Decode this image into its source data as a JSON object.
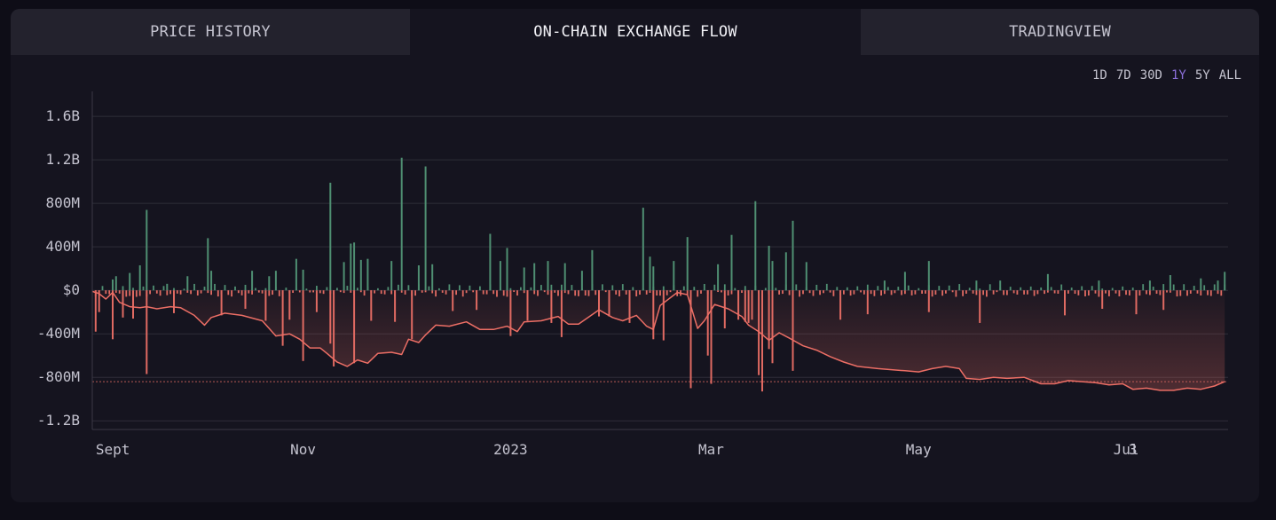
{
  "tabs": [
    {
      "label": "PRICE HISTORY",
      "active": false
    },
    {
      "label": "ON-CHAIN EXCHANGE FLOW",
      "active": true
    },
    {
      "label": "TRADINGVIEW",
      "active": false
    }
  ],
  "ranges": [
    {
      "label": "1D",
      "active": false
    },
    {
      "label": "7D",
      "active": false
    },
    {
      "label": "30D",
      "active": false
    },
    {
      "label": "1Y",
      "active": true
    },
    {
      "label": "5Y",
      "active": false
    },
    {
      "label": "ALL",
      "active": false
    }
  ],
  "colors": {
    "inflow_bar": "#4f8f72",
    "outflow_bar": "#e06a62",
    "cumulative_line": "#ec6e65",
    "active_range": "#8b6fd8",
    "grid": "#2e2d38"
  },
  "chart_data": {
    "type": "bar",
    "title": "",
    "xlabel": "",
    "ylabel": "",
    "ylim": [
      -1280000000,
      1830000000
    ],
    "y_ticks": [
      {
        "value": 1600000000,
        "label": "1.6B"
      },
      {
        "value": 1200000000,
        "label": "1.2B"
      },
      {
        "value": 800000000,
        "label": "800M"
      },
      {
        "value": 400000000,
        "label": "400M"
      },
      {
        "value": 0,
        "label": "$0"
      },
      {
        "value": -400000000,
        "label": "-400M"
      },
      {
        "value": -800000000,
        "label": "-800M"
      },
      {
        "value": -1200000000,
        "label": "-1.2B"
      }
    ],
    "x_range": [
      "2022-08-31",
      "2023-07-31"
    ],
    "x_ticks": [
      {
        "date": "2022-09-01",
        "label": "Sept"
      },
      {
        "date": "2022-11-01",
        "label": "Nov"
      },
      {
        "date": "2023-01-01",
        "label": "2023"
      },
      {
        "date": "2023-03-01",
        "label": "Mar"
      },
      {
        "date": "2023-05-01",
        "label": "May"
      },
      {
        "date": "2023-07-01",
        "label": "Jul"
      },
      {
        "date": "2023-07-03",
        "label": "3"
      }
    ],
    "grid": true,
    "legend": "none",
    "reference_line": -840000000,
    "inflow_bars": [
      [
        "2022-09-06",
        100000000
      ],
      [
        "2022-09-07",
        130000000
      ],
      [
        "2022-09-11",
        160000000
      ],
      [
        "2022-09-14",
        230000000
      ],
      [
        "2022-09-16",
        740000000
      ],
      [
        "2022-09-22",
        60000000
      ],
      [
        "2022-09-28",
        130000000
      ],
      [
        "2022-10-04",
        480000000
      ],
      [
        "2022-10-05",
        180000000
      ],
      [
        "2022-10-17",
        180000000
      ],
      [
        "2022-10-22",
        130000000
      ],
      [
        "2022-10-24",
        180000000
      ],
      [
        "2022-10-30",
        290000000
      ],
      [
        "2022-11-01",
        190000000
      ],
      [
        "2022-11-09",
        990000000
      ],
      [
        "2022-11-13",
        260000000
      ],
      [
        "2022-11-15",
        430000000
      ],
      [
        "2022-11-16",
        440000000
      ],
      [
        "2022-11-18",
        280000000
      ],
      [
        "2022-11-20",
        290000000
      ],
      [
        "2022-11-27",
        270000000
      ],
      [
        "2022-11-30",
        1220000000
      ],
      [
        "2022-12-05",
        230000000
      ],
      [
        "2022-12-07",
        1140000000
      ],
      [
        "2022-12-09",
        240000000
      ],
      [
        "2022-12-26",
        520000000
      ],
      [
        "2022-12-29",
        270000000
      ],
      [
        "2022-12-31",
        390000000
      ],
      [
        "2023-01-05",
        210000000
      ],
      [
        "2023-01-08",
        250000000
      ],
      [
        "2023-01-12",
        270000000
      ],
      [
        "2023-01-17",
        250000000
      ],
      [
        "2023-01-22",
        180000000
      ],
      [
        "2023-01-25",
        370000000
      ],
      [
        "2023-02-09",
        760000000
      ],
      [
        "2023-02-11",
        310000000
      ],
      [
        "2023-02-12",
        220000000
      ],
      [
        "2023-02-18",
        270000000
      ],
      [
        "2023-02-22",
        490000000
      ],
      [
        "2023-03-03",
        240000000
      ],
      [
        "2023-03-07",
        510000000
      ],
      [
        "2023-03-14",
        820000000
      ],
      [
        "2023-03-18",
        410000000
      ],
      [
        "2023-03-19",
        270000000
      ],
      [
        "2023-03-23",
        350000000
      ],
      [
        "2023-03-25",
        640000000
      ],
      [
        "2023-03-29",
        260000000
      ],
      [
        "2023-04-21",
        90000000
      ],
      [
        "2023-04-27",
        170000000
      ],
      [
        "2023-05-04",
        270000000
      ],
      [
        "2023-05-18",
        90000000
      ],
      [
        "2023-05-25",
        90000000
      ],
      [
        "2023-06-08",
        150000000
      ],
      [
        "2023-06-23",
        90000000
      ],
      [
        "2023-07-08",
        90000000
      ],
      [
        "2023-07-14",
        140000000
      ],
      [
        "2023-07-23",
        110000000
      ],
      [
        "2023-07-28",
        90000000
      ],
      [
        "2023-07-30",
        170000000
      ]
    ],
    "outflow_bars": [
      [
        "2022-09-01",
        -380000000
      ],
      [
        "2022-09-02",
        -200000000
      ],
      [
        "2022-09-06",
        -450000000
      ],
      [
        "2022-09-09",
        -250000000
      ],
      [
        "2022-09-12",
        -260000000
      ],
      [
        "2022-09-16",
        -770000000
      ],
      [
        "2022-09-24",
        -210000000
      ],
      [
        "2022-10-08",
        -230000000
      ],
      [
        "2022-10-15",
        -170000000
      ],
      [
        "2022-10-21",
        -280000000
      ],
      [
        "2022-10-26",
        -510000000
      ],
      [
        "2022-10-28",
        -270000000
      ],
      [
        "2022-11-01",
        -650000000
      ],
      [
        "2022-11-05",
        -200000000
      ],
      [
        "2022-11-09",
        -490000000
      ],
      [
        "2022-11-10",
        -700000000
      ],
      [
        "2022-11-16",
        -670000000
      ],
      [
        "2022-11-21",
        -280000000
      ],
      [
        "2022-11-28",
        -290000000
      ],
      [
        "2022-12-03",
        -450000000
      ],
      [
        "2022-12-15",
        -190000000
      ],
      [
        "2022-12-22",
        -180000000
      ],
      [
        "2023-01-01",
        -420000000
      ],
      [
        "2023-01-06",
        -280000000
      ],
      [
        "2023-01-13",
        -300000000
      ],
      [
        "2023-01-16",
        -430000000
      ],
      [
        "2023-01-27",
        -240000000
      ],
      [
        "2023-01-30",
        -240000000
      ],
      [
        "2023-02-05",
        -300000000
      ],
      [
        "2023-02-12",
        -450000000
      ],
      [
        "2023-02-15",
        -460000000
      ],
      [
        "2023-02-23",
        -900000000
      ],
      [
        "2023-02-28",
        -600000000
      ],
      [
        "2023-03-01",
        -860000000
      ],
      [
        "2023-03-05",
        -350000000
      ],
      [
        "2023-03-09",
        -270000000
      ],
      [
        "2023-03-11",
        -290000000
      ],
      [
        "2023-03-12",
        -300000000
      ],
      [
        "2023-03-13",
        -270000000
      ],
      [
        "2023-03-15",
        -780000000
      ],
      [
        "2023-03-16",
        -930000000
      ],
      [
        "2023-03-18",
        -540000000
      ],
      [
        "2023-03-19",
        -670000000
      ],
      [
        "2023-03-25",
        -740000000
      ],
      [
        "2023-04-08",
        -270000000
      ],
      [
        "2023-04-16",
        -220000000
      ],
      [
        "2023-05-04",
        -200000000
      ],
      [
        "2023-05-19",
        -300000000
      ],
      [
        "2023-06-13",
        -230000000
      ],
      [
        "2023-06-24",
        -170000000
      ],
      [
        "2023-07-04",
        -220000000
      ],
      [
        "2023-07-12",
        -180000000
      ]
    ],
    "small_bar_amplitude": 60000000,
    "cumulative_series": {
      "name": "",
      "points": [
        [
          "2022-08-31",
          -10000000
        ],
        [
          "2022-09-02",
          -30000000
        ],
        [
          "2022-09-04",
          -80000000
        ],
        [
          "2022-09-06",
          -20000000
        ],
        [
          "2022-09-08",
          -110000000
        ],
        [
          "2022-09-11",
          -150000000
        ],
        [
          "2022-09-14",
          -160000000
        ],
        [
          "2022-09-16",
          -150000000
        ],
        [
          "2022-09-19",
          -170000000
        ],
        [
          "2022-09-23",
          -150000000
        ],
        [
          "2022-09-26",
          -160000000
        ],
        [
          "2022-09-30",
          -230000000
        ],
        [
          "2022-10-03",
          -320000000
        ],
        [
          "2022-10-05",
          -250000000
        ],
        [
          "2022-10-09",
          -210000000
        ],
        [
          "2022-10-14",
          -230000000
        ],
        [
          "2022-10-20",
          -280000000
        ],
        [
          "2022-10-24",
          -420000000
        ],
        [
          "2022-10-28",
          -400000000
        ],
        [
          "2022-10-31",
          -450000000
        ],
        [
          "2022-11-03",
          -530000000
        ],
        [
          "2022-11-06",
          -530000000
        ],
        [
          "2022-11-08",
          -580000000
        ],
        [
          "2022-11-11",
          -660000000
        ],
        [
          "2022-11-14",
          -700000000
        ],
        [
          "2022-11-17",
          -640000000
        ],
        [
          "2022-11-20",
          -670000000
        ],
        [
          "2022-11-23",
          -580000000
        ],
        [
          "2022-11-27",
          -570000000
        ],
        [
          "2022-11-30",
          -590000000
        ],
        [
          "2022-12-02",
          -450000000
        ],
        [
          "2022-12-05",
          -480000000
        ],
        [
          "2022-12-07",
          -410000000
        ],
        [
          "2022-12-10",
          -320000000
        ],
        [
          "2022-12-14",
          -330000000
        ],
        [
          "2022-12-19",
          -290000000
        ],
        [
          "2022-12-23",
          -360000000
        ],
        [
          "2022-12-27",
          -360000000
        ],
        [
          "2022-12-31",
          -330000000
        ],
        [
          "2023-01-03",
          -380000000
        ],
        [
          "2023-01-05",
          -290000000
        ],
        [
          "2023-01-10",
          -280000000
        ],
        [
          "2023-01-15",
          -240000000
        ],
        [
          "2023-01-18",
          -310000000
        ],
        [
          "2023-01-21",
          -310000000
        ],
        [
          "2023-01-27",
          -180000000
        ],
        [
          "2023-01-31",
          -250000000
        ],
        [
          "2023-02-03",
          -280000000
        ],
        [
          "2023-02-07",
          -230000000
        ],
        [
          "2023-02-10",
          -330000000
        ],
        [
          "2023-02-12",
          -360000000
        ],
        [
          "2023-02-14",
          -140000000
        ],
        [
          "2023-02-19",
          -20000000
        ],
        [
          "2023-02-22",
          -40000000
        ],
        [
          "2023-02-25",
          -350000000
        ],
        [
          "2023-02-27",
          -280000000
        ],
        [
          "2023-03-02",
          -130000000
        ],
        [
          "2023-03-06",
          -170000000
        ],
        [
          "2023-03-10",
          -240000000
        ],
        [
          "2023-03-12",
          -320000000
        ],
        [
          "2023-03-15",
          -380000000
        ],
        [
          "2023-03-18",
          -460000000
        ],
        [
          "2023-03-21",
          -390000000
        ],
        [
          "2023-03-24",
          -440000000
        ],
        [
          "2023-03-28",
          -510000000
        ],
        [
          "2023-04-01",
          -550000000
        ],
        [
          "2023-04-05",
          -610000000
        ],
        [
          "2023-04-09",
          -660000000
        ],
        [
          "2023-04-13",
          -700000000
        ],
        [
          "2023-04-19",
          -720000000
        ],
        [
          "2023-04-23",
          -730000000
        ],
        [
          "2023-04-27",
          -740000000
        ],
        [
          "2023-05-01",
          -750000000
        ],
        [
          "2023-05-05",
          -720000000
        ],
        [
          "2023-05-09",
          -700000000
        ],
        [
          "2023-05-13",
          -720000000
        ],
        [
          "2023-05-15",
          -810000000
        ],
        [
          "2023-05-19",
          -820000000
        ],
        [
          "2023-05-23",
          -800000000
        ],
        [
          "2023-05-27",
          -810000000
        ],
        [
          "2023-06-01",
          -800000000
        ],
        [
          "2023-06-06",
          -860000000
        ],
        [
          "2023-06-10",
          -860000000
        ],
        [
          "2023-06-14",
          -830000000
        ],
        [
          "2023-06-18",
          -840000000
        ],
        [
          "2023-06-22",
          -850000000
        ],
        [
          "2023-06-26",
          -870000000
        ],
        [
          "2023-06-30",
          -860000000
        ],
        [
          "2023-07-03",
          -910000000
        ],
        [
          "2023-07-07",
          -900000000
        ],
        [
          "2023-07-11",
          -920000000
        ],
        [
          "2023-07-15",
          -920000000
        ],
        [
          "2023-07-19",
          -900000000
        ],
        [
          "2023-07-23",
          -910000000
        ],
        [
          "2023-07-27",
          -880000000
        ],
        [
          "2023-07-30",
          -840000000
        ]
      ]
    }
  }
}
